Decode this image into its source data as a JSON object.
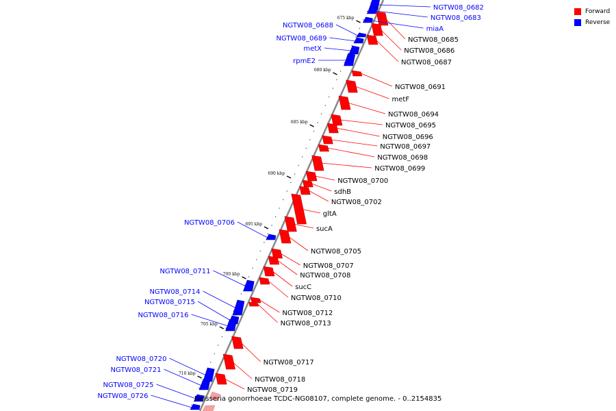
{
  "legend": [
    {
      "label": "Forward",
      "color": "#ff0000"
    },
    {
      "label": "Reverse",
      "color": "#0000ff"
    }
  ],
  "caption": "Neisseria gonorrhoeae TCDC-NG08107, complete genome. - 0..2154835",
  "colors": {
    "forward": "#ff0000",
    "reverse": "#0000ff",
    "backbone": "#888888"
  },
  "ticks": [
    "675 kbp",
    "680 kbp",
    "685 kbp",
    "690 kbp",
    "695 kbp",
    "700 kbp",
    "705 kbp",
    "710 kbp"
  ],
  "forward_genes": [
    "NGTW08_0685",
    "NGTW08_0686",
    "NGTW08_0687",
    "NGTW08_0691",
    "metF",
    "NGTW08_0694",
    "NGTW08_0695",
    "NGTW08_0696",
    "NGTW08_0697",
    "NGTW08_0698",
    "NGTW08_0699",
    "NGTW08_0700",
    "sdhB",
    "NGTW08_0702",
    "gltA",
    "sucA",
    "NGTW08_0705",
    "NGTW08_0707",
    "NGTW08_0708",
    "sucC",
    "NGTW08_0710",
    "NGTW08_0712",
    "NGTW08_0713",
    "NGTW08_0717",
    "NGTW08_0718",
    "NGTW08_0719"
  ],
  "reverse_genes": [
    "NGTW08_0682",
    "NGTW08_0683",
    "miaA",
    "NGTW08_0688",
    "NGTW08_0689",
    "metX",
    "rpmE2",
    "NGTW08_0706",
    "NGTW08_0711",
    "NGTW08_0714",
    "NGTW08_0715",
    "NGTW08_0716",
    "NGTW08_0720",
    "NGTW08_0721",
    "NGTW08_0725",
    "NGTW08_0726"
  ]
}
